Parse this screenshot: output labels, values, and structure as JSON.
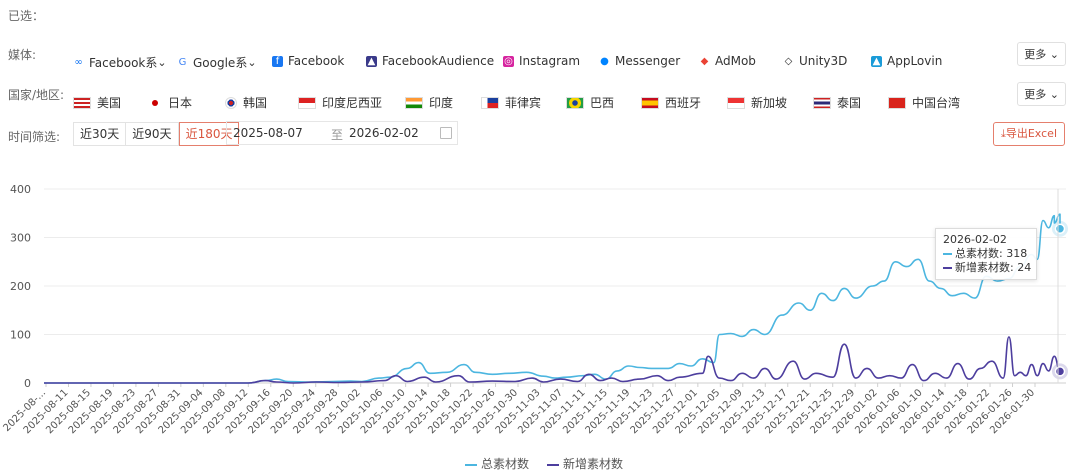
{
  "selected_label": "已选：",
  "media": {
    "label": "媒体:",
    "options": [
      {
        "icon": "meta-icon",
        "label": "Facebook系",
        "dropdown": true
      },
      {
        "icon": "google-icon",
        "label": "Google系",
        "dropdown": true
      },
      {
        "icon": "facebook-icon",
        "label": "Facebook"
      },
      {
        "icon": "audience-network-icon",
        "label": "FacebookAudience"
      },
      {
        "icon": "instagram-icon",
        "label": "Instagram"
      },
      {
        "icon": "messenger-icon",
        "label": "Messenger"
      },
      {
        "icon": "admob-icon",
        "label": "AdMob"
      },
      {
        "icon": "unity-icon",
        "label": "Unity3D"
      },
      {
        "icon": "applovin-icon",
        "label": "AppLovin"
      }
    ],
    "more_label": "更多"
  },
  "country": {
    "label": "国家/地区:",
    "options": [
      {
        "flag": "us-flag",
        "label": "美国"
      },
      {
        "flag": "japan-flag",
        "label": "日本"
      },
      {
        "flag": "korea-flag",
        "label": "韩国"
      },
      {
        "flag": "indonesia-flag",
        "label": "印度尼西亚"
      },
      {
        "flag": "india-flag",
        "label": "印度"
      },
      {
        "flag": "philippines-flag",
        "label": "菲律宾"
      },
      {
        "flag": "brazil-flag",
        "label": "巴西"
      },
      {
        "flag": "spain-flag",
        "label": "西班牙"
      },
      {
        "flag": "singapore-flag",
        "label": "新加坡"
      },
      {
        "flag": "thailand-flag",
        "label": "泰国"
      },
      {
        "flag": "china-taiwan-flag",
        "label": "中国台湾"
      }
    ],
    "more_label": "更多"
  },
  "time": {
    "label": "时间筛选:",
    "ranges": [
      "近30天",
      "近90天",
      "近180天"
    ],
    "active_range": "近180天",
    "start_date": "2025-08-07",
    "separator": "至",
    "end_date": "2026-02-02"
  },
  "export_label": "导出Excel",
  "colors": {
    "total": "#4cb6e0",
    "new": "#4d3e9e",
    "accent": "#e25a43"
  },
  "tooltip": {
    "date": "2026-02-02",
    "total_label": "总素材数: 318",
    "new_label": "新增素材数: 24"
  },
  "chart_data": {
    "type": "line",
    "start_date": "2025-08-07",
    "end_date": "2026-02-02",
    "ylim": [
      0,
      400
    ],
    "yticks": [
      "0",
      "100",
      "200",
      "300",
      "400"
    ],
    "xticks": [
      "2025-08-...",
      "2025-08-11",
      "2025-08-15",
      "2025-08-19",
      "2025-08-23",
      "2025-08-27",
      "2025-08-31",
      "2025-09-04",
      "2025-09-08",
      "2025-09-12",
      "2025-09-16",
      "2025-09-20",
      "2025-09-24",
      "2025-09-28",
      "2025-10-02",
      "2025-10-06",
      "2025-10-10",
      "2025-10-14",
      "2025-10-18",
      "2025-10-22",
      "2025-10-26",
      "2025-10-30",
      "2025-11-03",
      "2025-11-07",
      "2025-11-11",
      "2025-11-15",
      "2025-11-19",
      "2025-11-23",
      "2025-11-27",
      "2025-12-01",
      "2025-12-05",
      "2025-12-09",
      "2025-12-13",
      "2025-12-17",
      "2025-12-21",
      "2025-12-25",
      "2025-12-29",
      "2026-01-02",
      "2026-01-06",
      "2026-01-10",
      "2026-01-14",
      "2026-01-18",
      "2026-01-22",
      "2026-01-26",
      "2026-01-30"
    ],
    "grid": true,
    "legend_position": "bottom",
    "series": [
      {
        "name": "总素材数",
        "points": [
          [
            "2025-08-07",
            0
          ],
          [
            "2025-09-12",
            0
          ],
          [
            "2025-09-15",
            5
          ],
          [
            "2025-09-17",
            8
          ],
          [
            "2025-09-19",
            3
          ],
          [
            "2025-09-23",
            2
          ],
          [
            "2025-09-27",
            3
          ],
          [
            "2025-09-30",
            4
          ],
          [
            "2025-10-02",
            3
          ],
          [
            "2025-10-05",
            10
          ],
          [
            "2025-10-07",
            12
          ],
          [
            "2025-10-10",
            30
          ],
          [
            "2025-10-12",
            42
          ],
          [
            "2025-10-14",
            20
          ],
          [
            "2025-10-17",
            22
          ],
          [
            "2025-10-20",
            38
          ],
          [
            "2025-10-22",
            22
          ],
          [
            "2025-10-25",
            18
          ],
          [
            "2025-10-28",
            20
          ],
          [
            "2025-10-31",
            22
          ],
          [
            "2025-11-03",
            14
          ],
          [
            "2025-11-05",
            10
          ],
          [
            "2025-11-07",
            12
          ],
          [
            "2025-11-10",
            15
          ],
          [
            "2025-11-12",
            18
          ],
          [
            "2025-11-14",
            8
          ],
          [
            "2025-11-16",
            25
          ],
          [
            "2025-11-18",
            35
          ],
          [
            "2025-11-20",
            32
          ],
          [
            "2025-11-22",
            30
          ],
          [
            "2025-11-25",
            30
          ],
          [
            "2025-11-27",
            40
          ],
          [
            "2025-11-29",
            35
          ],
          [
            "2025-12-01",
            50
          ],
          [
            "2025-12-03",
            42
          ],
          [
            "2025-12-04",
            100
          ],
          [
            "2025-12-06",
            102
          ],
          [
            "2025-12-08",
            96
          ],
          [
            "2025-12-10",
            110
          ],
          [
            "2025-12-12",
            100
          ],
          [
            "2025-12-15",
            140
          ],
          [
            "2025-12-18",
            165
          ],
          [
            "2025-12-20",
            150
          ],
          [
            "2025-12-22",
            185
          ],
          [
            "2025-12-24",
            170
          ],
          [
            "2025-12-26",
            195
          ],
          [
            "2025-12-28",
            175
          ],
          [
            "2025-12-31",
            200
          ],
          [
            "2026-01-02",
            210
          ],
          [
            "2026-01-04",
            250
          ],
          [
            "2026-01-06",
            240
          ],
          [
            "2026-01-08",
            255
          ],
          [
            "2026-01-10",
            210
          ],
          [
            "2026-01-12",
            195
          ],
          [
            "2026-01-14",
            180
          ],
          [
            "2026-01-16",
            185
          ],
          [
            "2026-01-18",
            175
          ],
          [
            "2026-01-20",
            220
          ],
          [
            "2026-01-22",
            210
          ],
          [
            "2026-01-24",
            215
          ],
          [
            "2026-01-26",
            240
          ],
          [
            "2026-01-28",
            265
          ],
          [
            "2026-01-29",
            255
          ],
          [
            "2026-01-30",
            335
          ],
          [
            "2026-01-31",
            320
          ],
          [
            "2026-02-01",
            345
          ],
          [
            "2026-02-01",
            330
          ],
          [
            "2026-02-02",
            348
          ],
          [
            "2026-02-02",
            318
          ]
        ]
      },
      {
        "name": "新增素材数",
        "points": [
          [
            "2025-08-07",
            0
          ],
          [
            "2025-09-12",
            0
          ],
          [
            "2025-09-15",
            5
          ],
          [
            "2025-09-17",
            2
          ],
          [
            "2025-09-20",
            0
          ],
          [
            "2025-09-24",
            2
          ],
          [
            "2025-09-28",
            1
          ],
          [
            "2025-10-02",
            2
          ],
          [
            "2025-10-06",
            5
          ],
          [
            "2025-10-08",
            15
          ],
          [
            "2025-10-10",
            3
          ],
          [
            "2025-10-13",
            12
          ],
          [
            "2025-10-15",
            2
          ],
          [
            "2025-10-19",
            15
          ],
          [
            "2025-10-21",
            2
          ],
          [
            "2025-10-25",
            4
          ],
          [
            "2025-10-29",
            3
          ],
          [
            "2025-11-01",
            10
          ],
          [
            "2025-11-03",
            2
          ],
          [
            "2025-11-06",
            8
          ],
          [
            "2025-11-09",
            3
          ],
          [
            "2025-11-11",
            18
          ],
          [
            "2025-11-13",
            5
          ],
          [
            "2025-11-15",
            10
          ],
          [
            "2025-11-17",
            3
          ],
          [
            "2025-11-20",
            8
          ],
          [
            "2025-11-23",
            15
          ],
          [
            "2025-11-25",
            5
          ],
          [
            "2025-11-27",
            12
          ],
          [
            "2025-12-01",
            20
          ],
          [
            "2025-12-02",
            55
          ],
          [
            "2025-12-04",
            10
          ],
          [
            "2025-12-06",
            5
          ],
          [
            "2025-12-08",
            20
          ],
          [
            "2025-12-10",
            10
          ],
          [
            "2025-12-12",
            30
          ],
          [
            "2025-12-14",
            8
          ],
          [
            "2025-12-17",
            45
          ],
          [
            "2025-12-19",
            8
          ],
          [
            "2025-12-21",
            20
          ],
          [
            "2025-12-24",
            12
          ],
          [
            "2025-12-26",
            80
          ],
          [
            "2025-12-28",
            10
          ],
          [
            "2025-12-30",
            30
          ],
          [
            "2026-01-01",
            10
          ],
          [
            "2026-01-03",
            15
          ],
          [
            "2026-01-05",
            10
          ],
          [
            "2026-01-07",
            38
          ],
          [
            "2026-01-09",
            5
          ],
          [
            "2026-01-11",
            20
          ],
          [
            "2026-01-13",
            10
          ],
          [
            "2026-01-15",
            40
          ],
          [
            "2026-01-17",
            8
          ],
          [
            "2026-01-19",
            30
          ],
          [
            "2026-01-21",
            45
          ],
          [
            "2026-01-23",
            10
          ],
          [
            "2026-01-24",
            95
          ],
          [
            "2026-01-25",
            15
          ],
          [
            "2026-01-26",
            22
          ],
          [
            "2026-01-27",
            15
          ],
          [
            "2026-01-28",
            38
          ],
          [
            "2026-01-29",
            15
          ],
          [
            "2026-01-30",
            40
          ],
          [
            "2026-01-31",
            25
          ],
          [
            "2026-02-01",
            55
          ],
          [
            "2026-02-02",
            24
          ]
        ]
      }
    ]
  }
}
